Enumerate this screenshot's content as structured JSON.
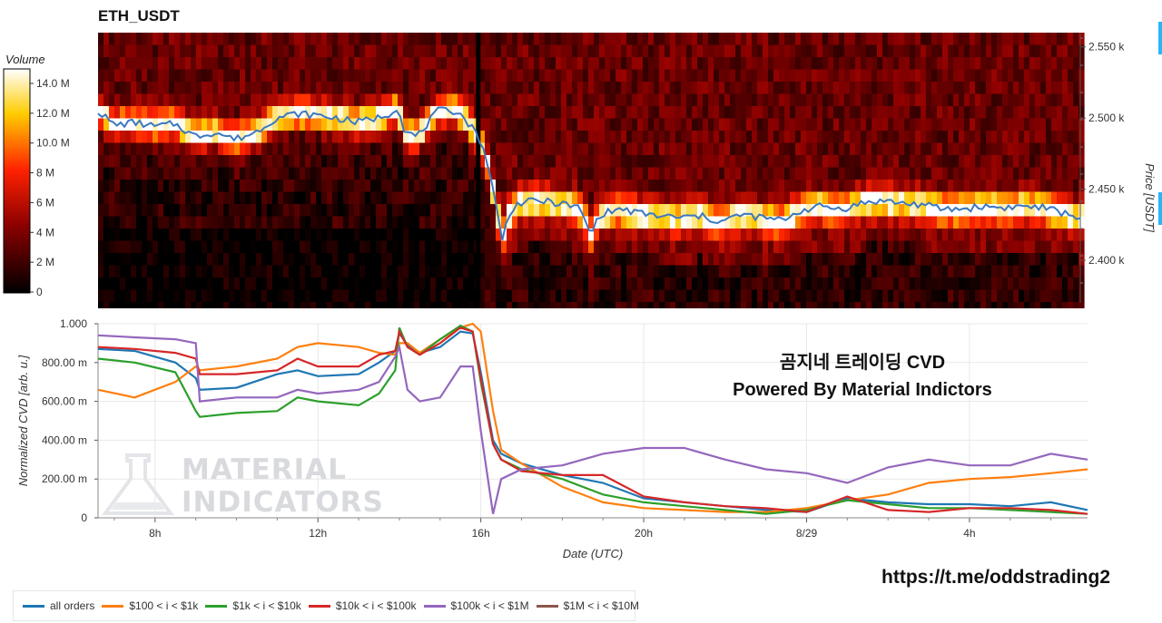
{
  "title": "ETH_USDT",
  "overlay": {
    "line1": "곰지네 트레이딩 CVD",
    "line2": "Powered By Material Indictors"
  },
  "watermark": {
    "line1": "MATERIAL",
    "line2": "INDICATORS"
  },
  "link": "https://t.me/oddstrading2",
  "colorbar": {
    "label": "Volume",
    "ticks": [
      "14.0 M",
      "12.0 M",
      "10.0 M",
      "8 M",
      "6 M",
      "4 M",
      "2 M",
      "0"
    ]
  },
  "colors": {
    "all orders": "#1f77b4",
    "$100 < i < $1k": "#ff7f0e",
    "$1k < i < $10k": "#2ca02c",
    "$10k < i < $100k": "#d62728",
    "$100k < i < $1M": "#9467bd",
    "$1M < i < $10M": "#8c564b",
    "price_line": "#3b78c2"
  },
  "chart_data": [
    {
      "type": "heatmap",
      "title": "ETH_USDT",
      "ylabel": "Price [USDT]",
      "colorbar_label": "Volume",
      "colorbar_range": [
        0,
        15000000
      ],
      "y_ticks": [
        "2.550 k",
        "2.500 k",
        "2.450 k",
        "2.400 k"
      ],
      "ylim": [
        2370,
        2560
      ],
      "x_hours_range": [
        6.6,
        30.9
      ],
      "price_line": {
        "x_hours": [
          6.6,
          7.0,
          7.5,
          8.0,
          8.5,
          9.0,
          9.5,
          10.0,
          10.5,
          11.0,
          11.5,
          12.0,
          12.5,
          13.0,
          13.5,
          13.8,
          14.0,
          14.2,
          14.5,
          15.0,
          15.5,
          16.0,
          16.2,
          16.4,
          16.6,
          16.8,
          17.0,
          17.5,
          18.0,
          18.5,
          18.8,
          19.0,
          19.5,
          20.0,
          20.5,
          21.0,
          21.5,
          22.0,
          22.5,
          23.0,
          23.5,
          24.0,
          24.5,
          25.0,
          25.5,
          26.0,
          26.5,
          27.0,
          27.5,
          28.0,
          28.5,
          29.0,
          29.5,
          30.0,
          30.5,
          30.9
        ],
        "y": [
          2505,
          2495,
          2497,
          2494,
          2496,
          2487,
          2490,
          2485,
          2490,
          2500,
          2503,
          2502,
          2500,
          2497,
          2500,
          2503,
          2508,
          2490,
          2487,
          2505,
          2505,
          2488,
          2473,
          2445,
          2415,
          2435,
          2440,
          2442,
          2440,
          2437,
          2418,
          2432,
          2436,
          2433,
          2431,
          2430,
          2431,
          2427,
          2432,
          2430,
          2428,
          2435,
          2438,
          2436,
          2440,
          2442,
          2440,
          2439,
          2436,
          2436,
          2438,
          2437,
          2438,
          2437,
          2433,
          2430
        ]
      }
    },
    {
      "type": "line",
      "xlabel": "Date (UTC)",
      "ylabel": "Normalized CVD [arb. u.]",
      "x_tick_labels": [
        "8h",
        "12h",
        "16h",
        "20h",
        "8/29",
        "4h"
      ],
      "x_tick_hours": [
        8,
        12,
        16,
        20,
        24,
        28
      ],
      "xlim_hours": [
        6.6,
        30.9
      ],
      "ylim": [
        0,
        1
      ],
      "y_tick_labels": [
        "1.000",
        "800.00 m",
        "600.00 m",
        "400.00 m",
        "200.00 m",
        "0"
      ],
      "legend_position": "bottom-left",
      "x_hours": [
        6.6,
        7.5,
        8.5,
        9.0,
        9.1,
        10.0,
        11.0,
        11.5,
        12.0,
        13.0,
        13.5,
        13.9,
        14.0,
        14.2,
        14.5,
        15.0,
        15.5,
        15.8,
        16.0,
        16.3,
        16.5,
        17.0,
        18.0,
        19.0,
        20.0,
        21.0,
        22.0,
        23.0,
        24.0,
        25.0,
        26.0,
        27.0,
        28.0,
        29.0,
        30.0,
        30.9
      ],
      "series": [
        {
          "name": "all orders",
          "values": [
            0.87,
            0.86,
            0.8,
            0.72,
            0.66,
            0.67,
            0.74,
            0.76,
            0.73,
            0.74,
            0.8,
            0.86,
            0.95,
            0.89,
            0.85,
            0.88,
            0.96,
            0.95,
            0.75,
            0.4,
            0.33,
            0.28,
            0.22,
            0.18,
            0.1,
            0.08,
            0.06,
            0.04,
            0.03,
            0.1,
            0.08,
            0.07,
            0.07,
            0.06,
            0.08,
            0.04
          ]
        },
        {
          "name": "$100 < i < $1k",
          "values": [
            0.66,
            0.62,
            0.7,
            0.78,
            0.76,
            0.78,
            0.82,
            0.88,
            0.9,
            0.88,
            0.85,
            0.84,
            0.9,
            0.9,
            0.85,
            0.92,
            0.98,
            1.0,
            0.96,
            0.55,
            0.35,
            0.28,
            0.16,
            0.08,
            0.05,
            0.04,
            0.03,
            0.03,
            0.05,
            0.09,
            0.12,
            0.18,
            0.2,
            0.21,
            0.23,
            0.25
          ]
        },
        {
          "name": "$1k < i < $10k",
          "values": [
            0.82,
            0.8,
            0.75,
            0.55,
            0.52,
            0.54,
            0.55,
            0.62,
            0.6,
            0.58,
            0.64,
            0.76,
            0.98,
            0.88,
            0.84,
            0.92,
            0.99,
            0.96,
            0.7,
            0.38,
            0.3,
            0.25,
            0.2,
            0.12,
            0.08,
            0.06,
            0.04,
            0.02,
            0.04,
            0.09,
            0.07,
            0.05,
            0.05,
            0.04,
            0.03,
            0.02
          ]
        },
        {
          "name": "$10k < i < $100k",
          "values": [
            0.88,
            0.87,
            0.85,
            0.82,
            0.74,
            0.74,
            0.76,
            0.82,
            0.78,
            0.78,
            0.84,
            0.86,
            0.96,
            0.88,
            0.84,
            0.9,
            0.98,
            0.96,
            0.72,
            0.38,
            0.3,
            0.24,
            0.22,
            0.22,
            0.11,
            0.08,
            0.06,
            0.05,
            0.03,
            0.11,
            0.04,
            0.03,
            0.05,
            0.05,
            0.04,
            0.02
          ]
        },
        {
          "name": "$100k < i < $1M",
          "values": [
            0.94,
            0.93,
            0.92,
            0.9,
            0.6,
            0.62,
            0.62,
            0.66,
            0.64,
            0.66,
            0.7,
            0.83,
            0.88,
            0.66,
            0.6,
            0.62,
            0.78,
            0.78,
            0.45,
            0.02,
            0.2,
            0.25,
            0.27,
            0.33,
            0.36,
            0.36,
            0.3,
            0.25,
            0.23,
            0.18,
            0.26,
            0.3,
            0.27,
            0.27,
            0.33,
            0.3
          ]
        },
        {
          "name": "$1M < i < $10M",
          "values": []
        }
      ]
    }
  ]
}
